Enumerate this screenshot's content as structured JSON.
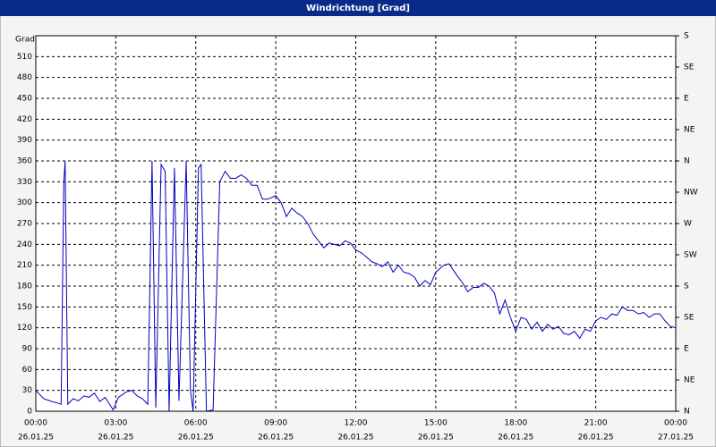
{
  "chart_data": {
    "type": "line",
    "title": "Windrichtung [Grad]",
    "y_label": "Grad",
    "xlim": [
      0,
      24
    ],
    "xticks": [
      {
        "value": 0,
        "label": "00:00",
        "date": "26.01.25"
      },
      {
        "value": 3,
        "label": "03:00",
        "date": "26.01.25"
      },
      {
        "value": 6,
        "label": "06:00",
        "date": "26.01.25"
      },
      {
        "value": 9,
        "label": "09:00",
        "date": "26.01.25"
      },
      {
        "value": 12,
        "label": "12:00",
        "date": "26.01.25"
      },
      {
        "value": 15,
        "label": "15:00",
        "date": "26.01.25"
      },
      {
        "value": 18,
        "label": "18:00",
        "date": "26.01.25"
      },
      {
        "value": 21,
        "label": "21:00",
        "date": "26.01.25"
      },
      {
        "value": 24,
        "label": "00:00",
        "date": "27.01.25"
      }
    ],
    "ylim": [
      0,
      540
    ],
    "yticks": [
      0,
      30,
      60,
      90,
      120,
      150,
      180,
      210,
      240,
      270,
      300,
      330,
      360,
      390,
      420,
      450,
      480,
      510
    ],
    "y2lim": [
      0,
      540
    ],
    "y2ticks": [
      {
        "value": 0,
        "label": "N"
      },
      {
        "value": 45,
        "label": "NE"
      },
      {
        "value": 90,
        "label": "E"
      },
      {
        "value": 135,
        "label": "SE"
      },
      {
        "value": 180,
        "label": "S"
      },
      {
        "value": 225,
        "label": "SW"
      },
      {
        "value": 270,
        "label": "W"
      },
      {
        "value": 315,
        "label": "NW"
      },
      {
        "value": 360,
        "label": "N"
      },
      {
        "value": 405,
        "label": "NE"
      },
      {
        "value": 450,
        "label": "E"
      },
      {
        "value": 495,
        "label": "SE"
      },
      {
        "value": 540,
        "label": "S"
      }
    ],
    "grid": true,
    "series": [
      {
        "name": "Windrichtung",
        "color": "#0000c0",
        "x": [
          0.0,
          0.3,
          0.6,
          0.8,
          0.95,
          1.05,
          1.1,
          1.2,
          1.4,
          1.6,
          1.8,
          2.0,
          2.2,
          2.4,
          2.6,
          2.8,
          2.9,
          3.1,
          3.4,
          3.6,
          3.8,
          4.0,
          4.2,
          4.36,
          4.5,
          4.7,
          4.85,
          5.0,
          5.2,
          5.37,
          5.64,
          5.8,
          5.9,
          6.1,
          6.2,
          6.4,
          6.65,
          6.9,
          7.1,
          7.3,
          7.5,
          7.7,
          7.9,
          8.1,
          8.3,
          8.5,
          8.7,
          9.0,
          9.2,
          9.4,
          9.6,
          9.8,
          10.0,
          10.2,
          10.4,
          10.6,
          10.8,
          11.0,
          11.2,
          11.4,
          11.6,
          11.8,
          12.0,
          12.2,
          12.4,
          12.6,
          12.8,
          13.0,
          13.2,
          13.4,
          13.6,
          13.8,
          14.0,
          14.2,
          14.4,
          14.6,
          14.8,
          15.0,
          15.3,
          15.5,
          15.8,
          16.0,
          16.2,
          16.4,
          16.6,
          16.8,
          17.0,
          17.2,
          17.4,
          17.6,
          17.8,
          18.0,
          18.2,
          18.4,
          18.6,
          18.8,
          19.0,
          19.2,
          19.4,
          19.6,
          19.8,
          20.0,
          20.2,
          20.4,
          20.6,
          20.8,
          21.0,
          21.2,
          21.4,
          21.6,
          21.8,
          22.0,
          22.2,
          22.4,
          22.6,
          22.8,
          23.0,
          23.2,
          23.4,
          23.6,
          23.8,
          24.0
        ],
        "values": [
          30,
          18,
          14,
          12,
          10,
          330,
          360,
          10,
          18,
          15,
          22,
          20,
          26,
          14,
          20,
          8,
          2,
          20,
          28,
          30,
          22,
          18,
          10,
          360,
          5,
          355,
          345,
          0,
          350,
          15,
          360,
          30,
          0,
          350,
          355,
          0,
          2,
          330,
          345,
          335,
          335,
          340,
          335,
          325,
          325,
          305,
          305,
          310,
          300,
          280,
          292,
          285,
          280,
          270,
          255,
          245,
          235,
          242,
          240,
          238,
          245,
          242,
          232,
          228,
          222,
          215,
          212,
          208,
          215,
          200,
          210,
          200,
          198,
          193,
          180,
          188,
          182,
          200,
          210,
          212,
          195,
          185,
          172,
          178,
          178,
          184,
          180,
          170,
          140,
          160,
          135,
          115,
          135,
          132,
          118,
          128,
          115,
          125,
          118,
          122,
          112,
          110,
          115,
          105,
          118,
          115,
          130,
          135,
          132,
          140,
          138,
          150,
          145,
          145,
          140,
          142,
          135,
          140,
          140,
          130,
          122,
          120
        ]
      }
    ]
  }
}
